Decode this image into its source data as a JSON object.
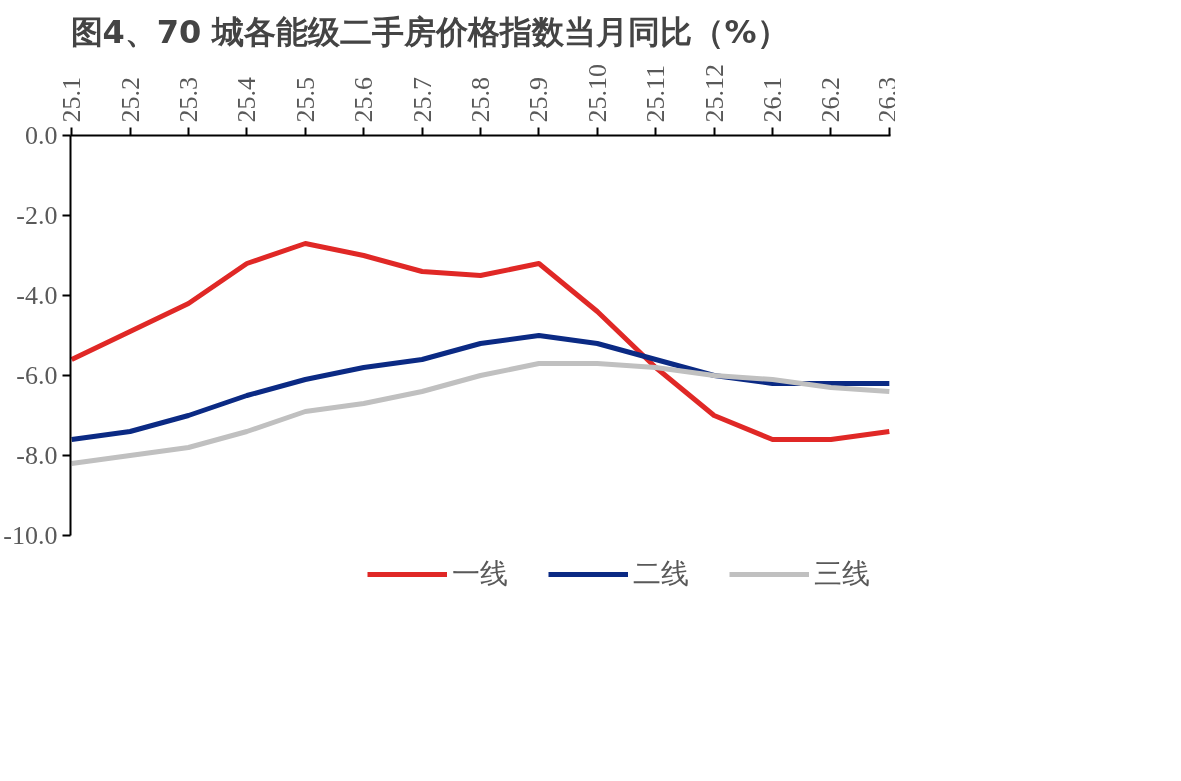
{
  "chart_data": {
    "type": "line",
    "title": "图4、70 城各能级二手房价格指数当月同比（%）",
    "categories": [
      "25.1",
      "25.2",
      "25.3",
      "25.4",
      "25.5",
      "25.6",
      "25.7",
      "25.8",
      "25.9",
      "25.10",
      "25.11",
      "25.12",
      "26.1",
      "26.2",
      "26.3"
    ],
    "series": [
      {
        "name": "一线",
        "color": "#e02826",
        "values": [
          -5.6,
          -4.9,
          -4.2,
          -3.2,
          -2.7,
          -3.0,
          -3.4,
          -3.5,
          -3.2,
          -4.4,
          -5.8,
          -7.0,
          -7.6,
          -7.6,
          -7.4
        ]
      },
      {
        "name": "二线",
        "color": "#0b2a84",
        "values": [
          -7.6,
          -7.4,
          -7.0,
          -6.5,
          -6.1,
          -5.8,
          -5.6,
          -5.2,
          -5.0,
          -5.2,
          -5.6,
          -6.0,
          -6.2,
          -6.2,
          -6.2
        ]
      },
      {
        "name": "三线",
        "color": "#c0c0c0",
        "values": [
          -8.2,
          -8.0,
          -7.8,
          -7.4,
          -6.9,
          -6.7,
          -6.4,
          -6.0,
          -5.7,
          -5.7,
          -5.8,
          -6.0,
          -6.1,
          -6.3,
          -6.4
        ]
      }
    ],
    "ylim": [
      -10,
      0
    ],
    "yticks": [
      {
        "value": 0,
        "label": "0.0"
      },
      {
        "value": -2,
        "label": "-2.0"
      },
      {
        "value": -4,
        "label": "-4.0"
      },
      {
        "value": -6,
        "label": "-6.0"
      },
      {
        "value": -8,
        "label": "-8.0"
      },
      {
        "value": -10,
        "label": "-10.0"
      }
    ],
    "grid": false,
    "legend": "bottom",
    "marker": "none",
    "line_style": "solid"
  }
}
